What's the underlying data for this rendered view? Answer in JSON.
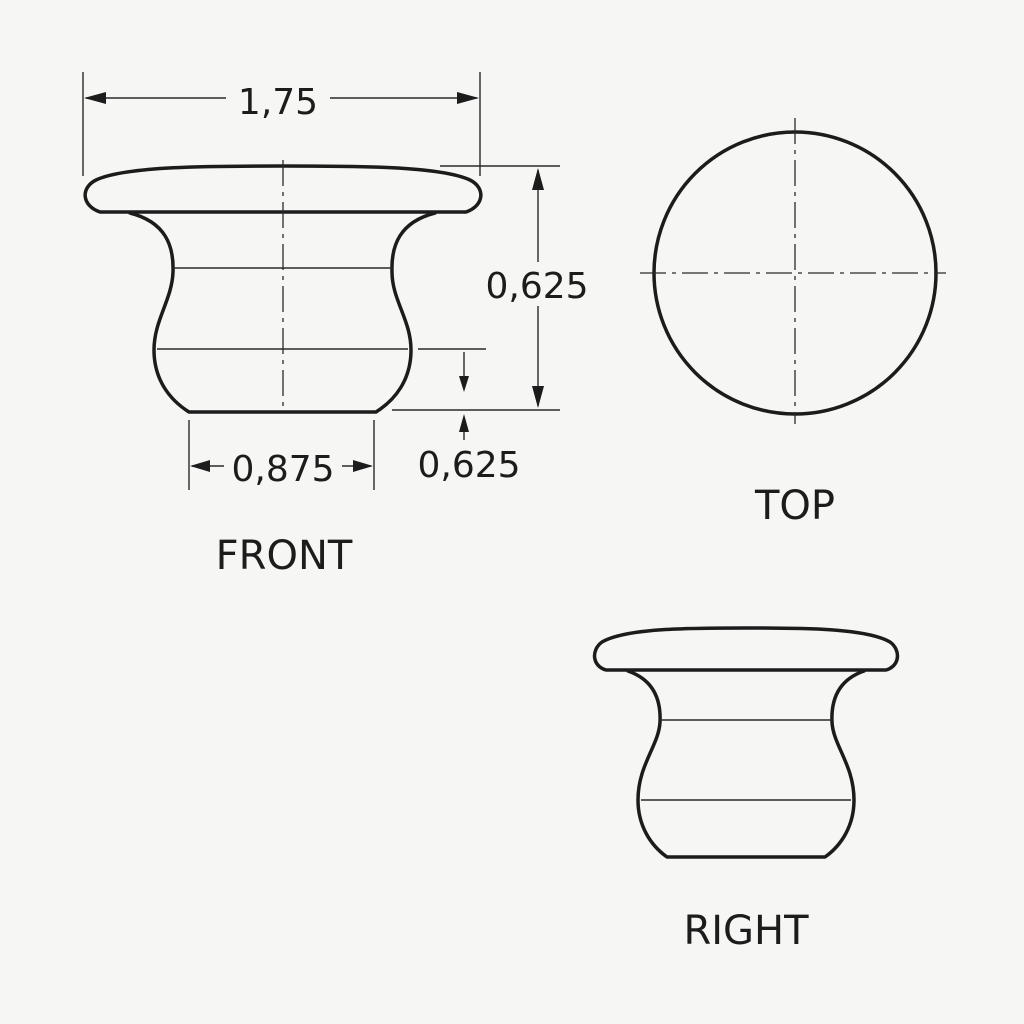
{
  "drawing": {
    "views": {
      "front": {
        "label": "FRONT"
      },
      "top": {
        "label": "TOP"
      },
      "right": {
        "label": "RIGHT"
      }
    },
    "dimensions": {
      "overall_width": "1,75",
      "overall_height": "0,625",
      "base_diameter": "0,875",
      "base_height": "0,625"
    },
    "colors": {
      "background": "#f6f6f4",
      "line": "#1c1c1c"
    }
  }
}
